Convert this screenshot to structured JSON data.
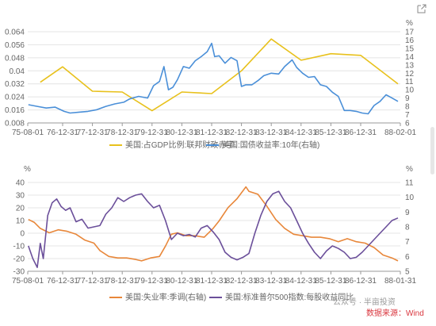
{
  "toolbar": {
    "export_icon": "external-link-icon"
  },
  "chart_data": [
    {
      "type": "line",
      "x_tick_labels": [
        "75-08-01",
        "76-12-31",
        "77-12-31",
        "78-12-31",
        "79-12-31",
        "80-12-31",
        "81-12-31",
        "82-12-31",
        "83-12-31",
        "84-12-31",
        "85-12-31",
        "86-12-31",
        "88-02-01"
      ],
      "left_axis": {
        "ticks": [
          "0.008",
          "0.016",
          "0.024",
          "0.032",
          "0.04",
          "0.048",
          "0.056",
          "0.064"
        ],
        "ylim": [
          0.008,
          0.064
        ]
      },
      "right_axis": {
        "unit": "%",
        "ticks": [
          "6",
          "7",
          "8",
          "9",
          "10",
          "11",
          "12",
          "13",
          "14",
          "15",
          "16",
          "17"
        ],
        "ylim": [
          6,
          17
        ]
      },
      "series": [
        {
          "name": "美国:占GDP比例:联邦财政赤字",
          "color": "#e8c11c",
          "axis": "left",
          "x": [
            1976.0,
            1976.75,
            1977.75,
            1978.75,
            1979.75,
            1980.75,
            1981.75,
            1982.75,
            1983.75,
            1984.75,
            1985.75,
            1986.75,
            1988.0
          ],
          "values": [
            0.033,
            0.0425,
            0.0275,
            0.027,
            0.0155,
            0.027,
            0.026,
            0.04,
            0.0595,
            0.0465,
            0.0505,
            0.0495,
            0.032
          ]
        },
        {
          "name": "美国:国债收益率:10年(右轴)",
          "color": "#4a8fd8",
          "axis": "right",
          "x": [
            1975.6,
            1975.9,
            1976.2,
            1976.5,
            1976.8,
            1977.0,
            1977.3,
            1977.6,
            1977.9,
            1978.2,
            1978.5,
            1978.8,
            1979.0,
            1979.3,
            1979.6,
            1979.8,
            1980.0,
            1980.15,
            1980.3,
            1980.45,
            1980.6,
            1980.8,
            1981.0,
            1981.2,
            1981.4,
            1981.6,
            1981.75,
            1981.85,
            1982.0,
            1982.2,
            1982.4,
            1982.6,
            1982.75,
            1982.9,
            1983.1,
            1983.3,
            1983.5,
            1983.75,
            1984.0,
            1984.2,
            1984.45,
            1984.6,
            1984.8,
            1985.0,
            1985.2,
            1985.4,
            1985.6,
            1985.8,
            1986.0,
            1986.2,
            1986.4,
            1986.6,
            1986.8,
            1987.0,
            1987.2,
            1987.4,
            1987.6,
            1987.8,
            1988.0
          ],
          "values": [
            8.2,
            8.0,
            7.8,
            7.9,
            7.4,
            7.2,
            7.3,
            7.4,
            7.6,
            8.0,
            8.3,
            8.5,
            8.9,
            9.2,
            9.0,
            10.5,
            11.0,
            12.8,
            10.0,
            10.3,
            11.2,
            12.8,
            12.6,
            13.5,
            14.0,
            14.6,
            15.6,
            14.0,
            14.1,
            13.2,
            13.9,
            13.5,
            10.4,
            10.6,
            10.6,
            11.1,
            11.7,
            12.0,
            11.9,
            12.8,
            13.6,
            12.7,
            12.0,
            11.5,
            11.6,
            10.6,
            10.4,
            9.7,
            9.2,
            7.5,
            7.5,
            7.4,
            7.2,
            7.1,
            8.1,
            8.6,
            9.4,
            9.0,
            8.6
          ]
        }
      ],
      "legend": [
        "美国:占GDP比例:联邦财政赤字",
        "美国:国债收益率:10年(右轴)"
      ]
    },
    {
      "type": "line",
      "x_tick_labels": [
        "75-08-01",
        "76-12-31",
        "77-12-31",
        "78-12-31",
        "79-12-31",
        "80-12-31",
        "81-12-31",
        "82-12-31",
        "83-12-31",
        "84-12-31",
        "85-12-31",
        "86-12-31",
        "88-01-31"
      ],
      "left_axis": {
        "unit": "%",
        "ticks": [
          "-30",
          "-20",
          "-10",
          "0",
          "10",
          "20",
          "30",
          "40"
        ],
        "ylim": [
          -30,
          40
        ]
      },
      "right_axis": {
        "unit": "%",
        "ticks": [
          "5",
          "6",
          "7",
          "8",
          "9",
          "10",
          "11"
        ],
        "ylim": [
          5,
          11
        ]
      },
      "series": [
        {
          "name": "美国:失业率:季调(右轴)",
          "color": "#e8873a",
          "axis": "right",
          "x": [
            1975.6,
            1975.8,
            1976.0,
            1976.3,
            1976.6,
            1976.9,
            1977.2,
            1977.5,
            1977.8,
            1978.0,
            1978.3,
            1978.6,
            1978.9,
            1979.2,
            1979.4,
            1979.7,
            1980.0,
            1980.2,
            1980.4,
            1980.6,
            1980.9,
            1981.2,
            1981.5,
            1981.8,
            1982.0,
            1982.3,
            1982.6,
            1982.9,
            1983.0,
            1983.3,
            1983.6,
            1983.9,
            1984.2,
            1984.5,
            1984.8,
            1985.1,
            1985.4,
            1985.7,
            1986.0,
            1986.3,
            1986.6,
            1986.9,
            1987.2,
            1987.5,
            1987.8,
            1988.0
          ],
          "values": [
            8.5,
            8.3,
            7.9,
            7.6,
            7.8,
            7.7,
            7.5,
            7.1,
            6.9,
            6.4,
            6.0,
            5.9,
            5.9,
            5.8,
            5.7,
            5.9,
            6.0,
            6.7,
            7.5,
            7.6,
            7.4,
            7.4,
            7.3,
            7.9,
            8.4,
            9.3,
            9.9,
            10.7,
            10.4,
            10.2,
            9.4,
            8.5,
            7.9,
            7.5,
            7.4,
            7.3,
            7.3,
            7.2,
            7.0,
            7.2,
            7.0,
            6.9,
            6.6,
            6.1,
            5.9,
            5.7
          ]
        },
        {
          "name": "美国:标准普尔500指数:每股收益同比",
          "color": "#6b4f9a",
          "axis": "left",
          "x": [
            1975.6,
            1975.75,
            1975.9,
            1976.0,
            1976.1,
            1976.25,
            1976.4,
            1976.55,
            1976.7,
            1976.85,
            1977.0,
            1977.2,
            1977.4,
            1977.6,
            1977.8,
            1978.0,
            1978.2,
            1978.4,
            1978.6,
            1978.8,
            1979.0,
            1979.2,
            1979.4,
            1979.6,
            1979.8,
            1980.0,
            1980.2,
            1980.4,
            1980.6,
            1980.8,
            1981.0,
            1981.2,
            1981.4,
            1981.6,
            1981.8,
            1982.0,
            1982.2,
            1982.4,
            1982.6,
            1982.8,
            1983.0,
            1983.2,
            1983.4,
            1983.6,
            1983.8,
            1984.0,
            1984.2,
            1984.4,
            1984.6,
            1984.8,
            1985.0,
            1985.2,
            1985.4,
            1985.6,
            1985.8,
            1986.0,
            1986.2,
            1986.4,
            1986.6,
            1986.8,
            1987.0,
            1987.2,
            1987.4,
            1987.6,
            1987.8,
            1988.0
          ],
          "values": [
            -10,
            -20,
            -27,
            -8,
            -20,
            14,
            24,
            27,
            21,
            18,
            20,
            9,
            11,
            4,
            5,
            6,
            15,
            20,
            28,
            25,
            28,
            30,
            31,
            25,
            20,
            22,
            10,
            -5,
            0,
            -2,
            -1,
            -3,
            4,
            6,
            1,
            -5,
            -15,
            -19,
            -21,
            -19,
            -16,
            0,
            14,
            25,
            31,
            33,
            25,
            20,
            10,
            0,
            -8,
            -15,
            -20,
            -14,
            -10,
            -12,
            -15,
            -20,
            -19,
            -15,
            -10,
            -5,
            0,
            5,
            10,
            12
          ]
        }
      ],
      "legend": [
        "美国:失业率:季调(右轴)",
        "美国:标准普尔500指数:每股收益同比"
      ]
    }
  ],
  "watermark": "公众号 · 半亩投资",
  "source_note": "数据来源：Wind"
}
